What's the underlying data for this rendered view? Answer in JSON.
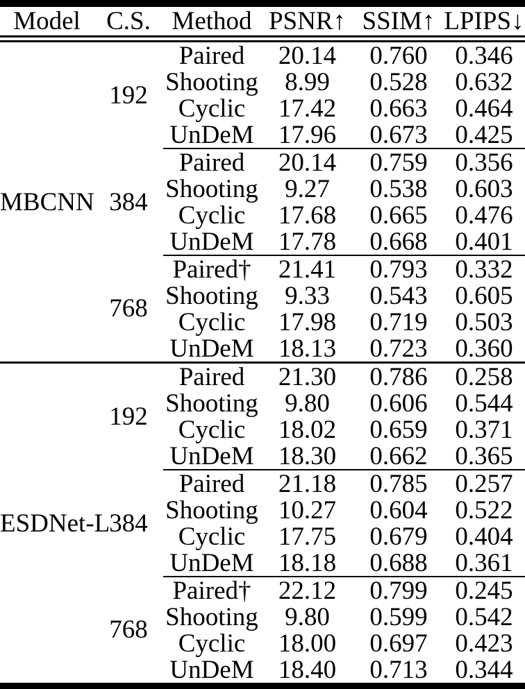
{
  "colors": {
    "text": "#000000",
    "rule": "#000000",
    "background": "#ffffff"
  },
  "table": {
    "columns": [
      {
        "key": "model",
        "label": "Model"
      },
      {
        "key": "cs",
        "label": "C.S."
      },
      {
        "key": "method",
        "label": "Method"
      },
      {
        "key": "psnr",
        "label": "PSNR↑"
      },
      {
        "key": "ssim",
        "label": "SSIM↑"
      },
      {
        "key": "lpips",
        "label": "LPIPS↓"
      }
    ],
    "groups": [
      {
        "model": "MBCNN",
        "subgroups": [
          {
            "cs": "192",
            "rows": [
              {
                "method": "Paired",
                "psnr": "20.14",
                "ssim": "0.760",
                "lpips": "0.346"
              },
              {
                "method": "Shooting",
                "psnr": "8.99",
                "ssim": "0.528",
                "lpips": "0.632"
              },
              {
                "method": "Cyclic",
                "psnr": "17.42",
                "ssim": "0.663",
                "lpips": "0.464"
              },
              {
                "method": "UnDeM",
                "psnr": "17.96",
                "ssim": "0.673",
                "lpips": "0.425"
              }
            ]
          },
          {
            "cs": "384",
            "rows": [
              {
                "method": "Paired",
                "psnr": "20.14",
                "ssim": "0.759",
                "lpips": "0.356"
              },
              {
                "method": "Shooting",
                "psnr": "9.27",
                "ssim": "0.538",
                "lpips": "0.603"
              },
              {
                "method": "Cyclic",
                "psnr": "17.68",
                "ssim": "0.665",
                "lpips": "0.476"
              },
              {
                "method": "UnDeM",
                "psnr": "17.78",
                "ssim": "0.668",
                "lpips": "0.401"
              }
            ]
          },
          {
            "cs": "768",
            "rows": [
              {
                "method": "Paired†",
                "psnr": "21.41",
                "ssim": "0.793",
                "lpips": "0.332"
              },
              {
                "method": "Shooting",
                "psnr": "9.33",
                "ssim": "0.543",
                "lpips": "0.605"
              },
              {
                "method": "Cyclic",
                "psnr": "17.98",
                "ssim": "0.719",
                "lpips": "0.503"
              },
              {
                "method": "UnDeM",
                "psnr": "18.13",
                "ssim": "0.723",
                "lpips": "0.360"
              }
            ]
          }
        ]
      },
      {
        "model": "ESDNet-L",
        "subgroups": [
          {
            "cs": "192",
            "rows": [
              {
                "method": "Paired",
                "psnr": "21.30",
                "ssim": "0.786",
                "lpips": "0.258"
              },
              {
                "method": "Shooting",
                "psnr": "9.80",
                "ssim": "0.606",
                "lpips": "0.544"
              },
              {
                "method": "Cyclic",
                "psnr": "18.02",
                "ssim": "0.659",
                "lpips": "0.371"
              },
              {
                "method": "UnDeM",
                "psnr": "18.30",
                "ssim": "0.662",
                "lpips": "0.365"
              }
            ]
          },
          {
            "cs": "384",
            "rows": [
              {
                "method": "Paired",
                "psnr": "21.18",
                "ssim": "0.785",
                "lpips": "0.257"
              },
              {
                "method": "Shooting",
                "psnr": "10.27",
                "ssim": "0.604",
                "lpips": "0.522"
              },
              {
                "method": "Cyclic",
                "psnr": "17.75",
                "ssim": "0.679",
                "lpips": "0.404"
              },
              {
                "method": "UnDeM",
                "psnr": "18.18",
                "ssim": "0.688",
                "lpips": "0.361"
              }
            ]
          },
          {
            "cs": "768",
            "rows": [
              {
                "method": "Paired†",
                "psnr": "22.12",
                "ssim": "0.799",
                "lpips": "0.245"
              },
              {
                "method": "Shooting",
                "psnr": "9.80",
                "ssim": "0.599",
                "lpips": "0.542"
              },
              {
                "method": "Cyclic",
                "psnr": "18.00",
                "ssim": "0.697",
                "lpips": "0.423"
              },
              {
                "method": "UnDeM",
                "psnr": "18.40",
                "ssim": "0.713",
                "lpips": "0.344"
              }
            ]
          }
        ]
      }
    ]
  }
}
